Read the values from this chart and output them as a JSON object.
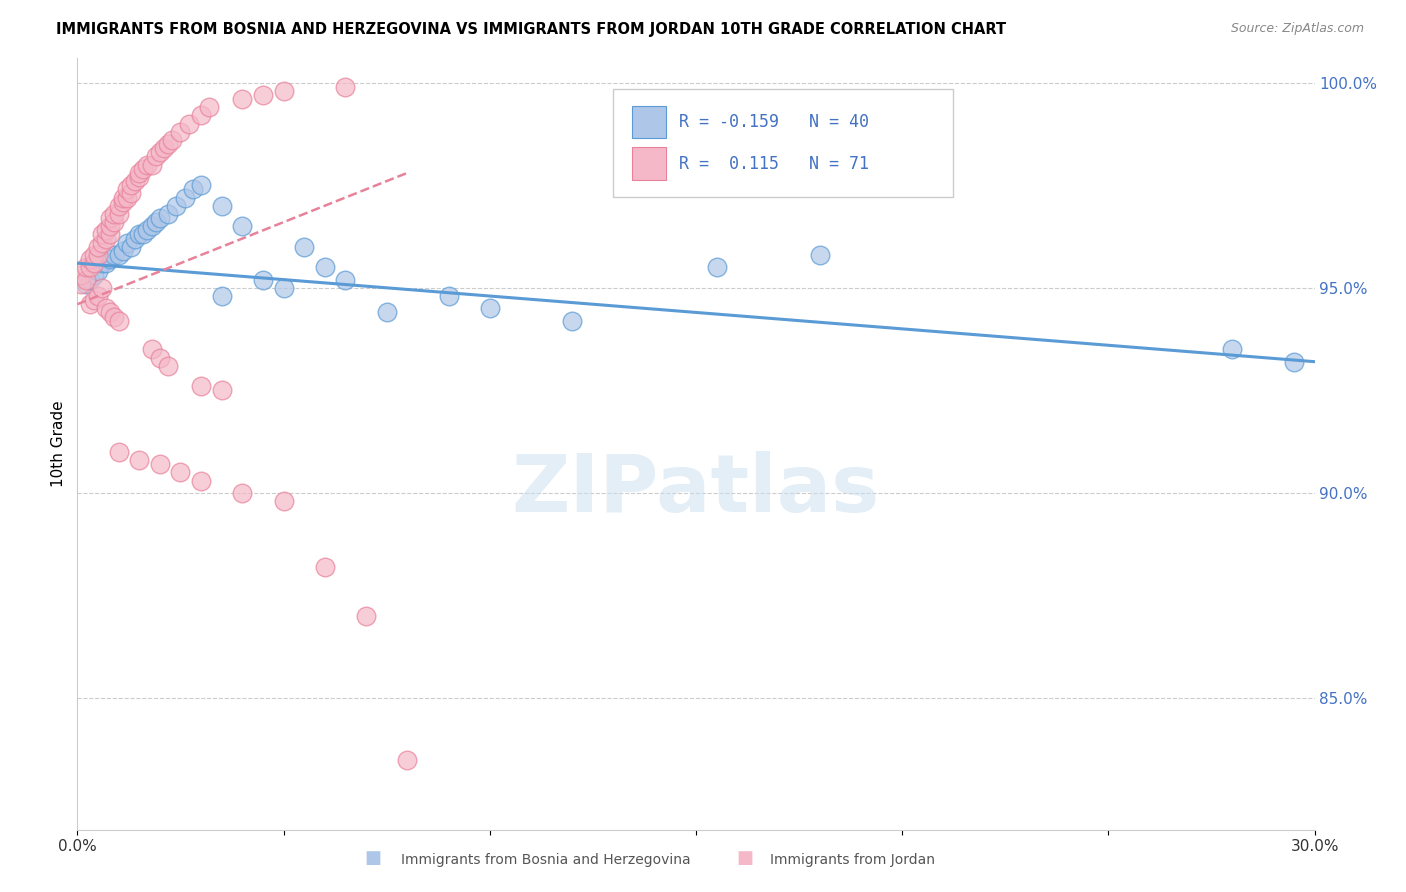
{
  "title": "IMMIGRANTS FROM BOSNIA AND HERZEGOVINA VS IMMIGRANTS FROM JORDAN 10TH GRADE CORRELATION CHART",
  "source": "Source: ZipAtlas.com",
  "ylabel": "10th Grade",
  "x_min": 0.0,
  "x_max": 0.3,
  "y_min": 0.818,
  "y_max": 1.006,
  "x_ticks": [
    0.0,
    0.05,
    0.1,
    0.15,
    0.2,
    0.25,
    0.3
  ],
  "x_tick_labels": [
    "0.0%",
    "",
    "",
    "",
    "",
    "",
    "30.0%"
  ],
  "y_ticks_right": [
    1.0,
    0.95,
    0.9,
    0.85
  ],
  "y_tick_labels_right": [
    "100.0%",
    "95.0%",
    "90.0%",
    "85.0%"
  ],
  "blue_color": "#5b9bd5",
  "pink_color": "#e8829a",
  "blue_fill": "#aec6e8",
  "pink_fill": "#f4b8c8",
  "watermark": "ZIPatlas",
  "blue_scatter_x": [
    0.002,
    0.003,
    0.004,
    0.005,
    0.006,
    0.007,
    0.008,
    0.009,
    0.01,
    0.011,
    0.012,
    0.013,
    0.014,
    0.015,
    0.016,
    0.017,
    0.018,
    0.019,
    0.02,
    0.022,
    0.024,
    0.026,
    0.028,
    0.03,
    0.035,
    0.04,
    0.055,
    0.06,
    0.065,
    0.09,
    0.1,
    0.155,
    0.18,
    0.28,
    0.295,
    0.035,
    0.045,
    0.05,
    0.075,
    0.12
  ],
  "blue_scatter_y": [
    0.951,
    0.952,
    0.953,
    0.954,
    0.956,
    0.956,
    0.957,
    0.958,
    0.958,
    0.959,
    0.961,
    0.96,
    0.962,
    0.963,
    0.963,
    0.964,
    0.965,
    0.966,
    0.967,
    0.968,
    0.97,
    0.972,
    0.974,
    0.975,
    0.97,
    0.965,
    0.96,
    0.955,
    0.952,
    0.948,
    0.945,
    0.955,
    0.958,
    0.935,
    0.932,
    0.948,
    0.952,
    0.95,
    0.944,
    0.942
  ],
  "pink_scatter_x": [
    0.001,
    0.001,
    0.002,
    0.002,
    0.003,
    0.003,
    0.004,
    0.004,
    0.005,
    0.005,
    0.006,
    0.006,
    0.007,
    0.007,
    0.008,
    0.008,
    0.008,
    0.009,
    0.009,
    0.01,
    0.01,
    0.011,
    0.011,
    0.012,
    0.012,
    0.013,
    0.013,
    0.014,
    0.015,
    0.015,
    0.016,
    0.017,
    0.018,
    0.019,
    0.02,
    0.021,
    0.022,
    0.023,
    0.025,
    0.027,
    0.03,
    0.032,
    0.04,
    0.045,
    0.05,
    0.065,
    0.003,
    0.004,
    0.005,
    0.006,
    0.007,
    0.008,
    0.009,
    0.01,
    0.018,
    0.02,
    0.022,
    0.03,
    0.035,
    0.01,
    0.015,
    0.02,
    0.025,
    0.03,
    0.04,
    0.05,
    0.06,
    0.07,
    0.08
  ],
  "pink_scatter_y": [
    0.951,
    0.953,
    0.952,
    0.955,
    0.955,
    0.957,
    0.956,
    0.958,
    0.958,
    0.96,
    0.961,
    0.963,
    0.962,
    0.964,
    0.963,
    0.965,
    0.967,
    0.966,
    0.968,
    0.968,
    0.97,
    0.971,
    0.972,
    0.972,
    0.974,
    0.973,
    0.975,
    0.976,
    0.977,
    0.978,
    0.979,
    0.98,
    0.98,
    0.982,
    0.983,
    0.984,
    0.985,
    0.986,
    0.988,
    0.99,
    0.992,
    0.994,
    0.996,
    0.997,
    0.998,
    0.999,
    0.946,
    0.947,
    0.948,
    0.95,
    0.945,
    0.944,
    0.943,
    0.942,
    0.935,
    0.933,
    0.931,
    0.926,
    0.925,
    0.91,
    0.908,
    0.907,
    0.905,
    0.903,
    0.9,
    0.898,
    0.882,
    0.87,
    0.835
  ],
  "blue_trend_x": [
    0.0,
    0.3
  ],
  "blue_trend_y": [
    0.956,
    0.932
  ],
  "pink_trend_x": [
    0.0,
    0.08
  ],
  "pink_trend_y": [
    0.946,
    0.978
  ]
}
